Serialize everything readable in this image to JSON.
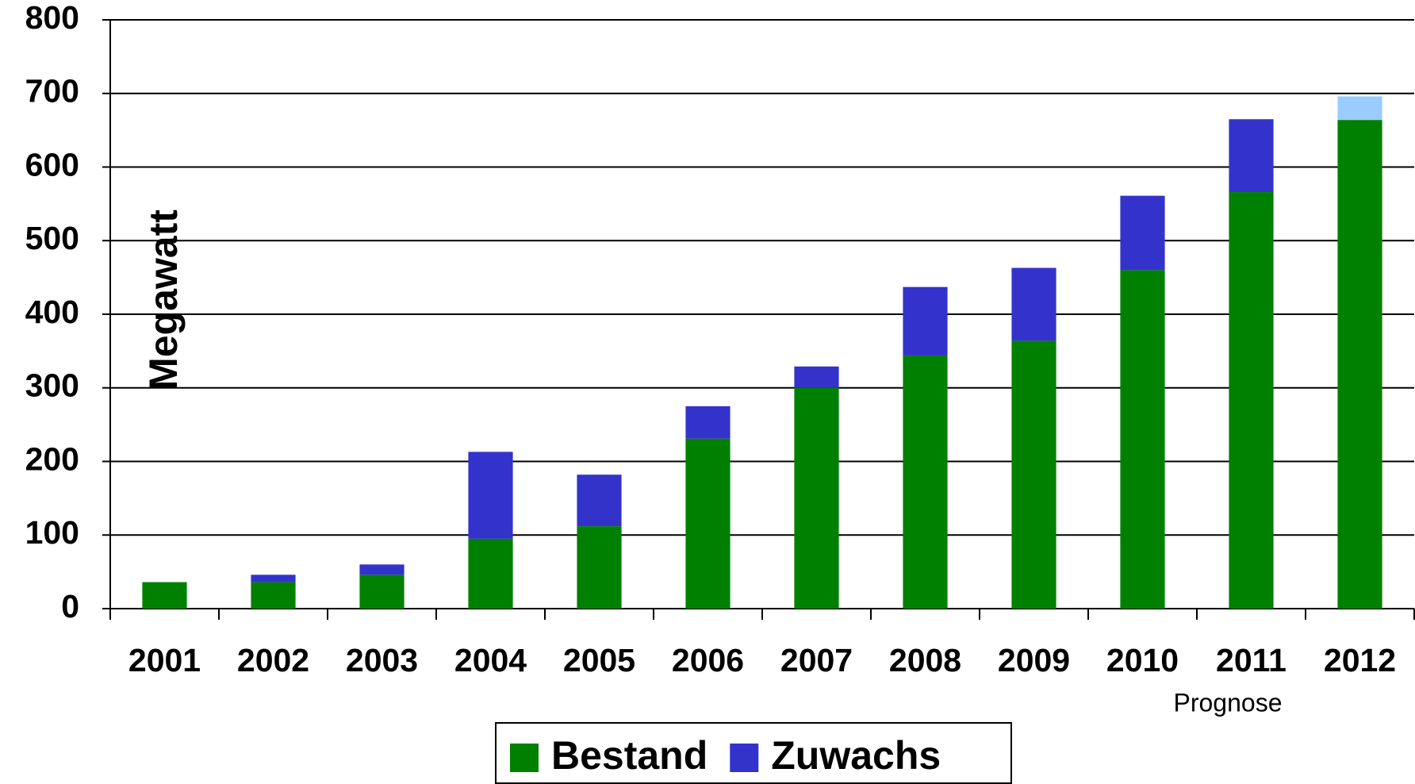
{
  "chart_data": {
    "type": "stacked_bar",
    "y_label": "Megawatt",
    "annotation": "Prognose",
    "categories": [
      "2001",
      "2002",
      "2003",
      "2004",
      "2005",
      "2006",
      "2007",
      "2008",
      "2009",
      "2010",
      "2011",
      "2012"
    ],
    "series": [
      {
        "name": "Bestand",
        "color": "#008000",
        "values": [
          36,
          36,
          46,
          95,
          112,
          231,
          300,
          344,
          364,
          460,
          566,
          664
        ]
      },
      {
        "name": "Zuwachs",
        "color": "#3333cc",
        "values": [
          null,
          10,
          14,
          118,
          70,
          44,
          29,
          93,
          99,
          101,
          99,
          32
        ],
        "colors": [
          "#3333cc",
          "#3333cc",
          "#3333cc",
          "#3333cc",
          "#3333cc",
          "#3333cc",
          "#3333cc",
          "#3333cc",
          "#3333cc",
          "#3333cc",
          "#3333cc",
          "#99ccff"
        ]
      }
    ],
    "ylim": [
      0,
      800
    ],
    "yticks": [
      0,
      100,
      200,
      300,
      400,
      500,
      600,
      700,
      800
    ],
    "grid": true,
    "legend": "bottom"
  }
}
